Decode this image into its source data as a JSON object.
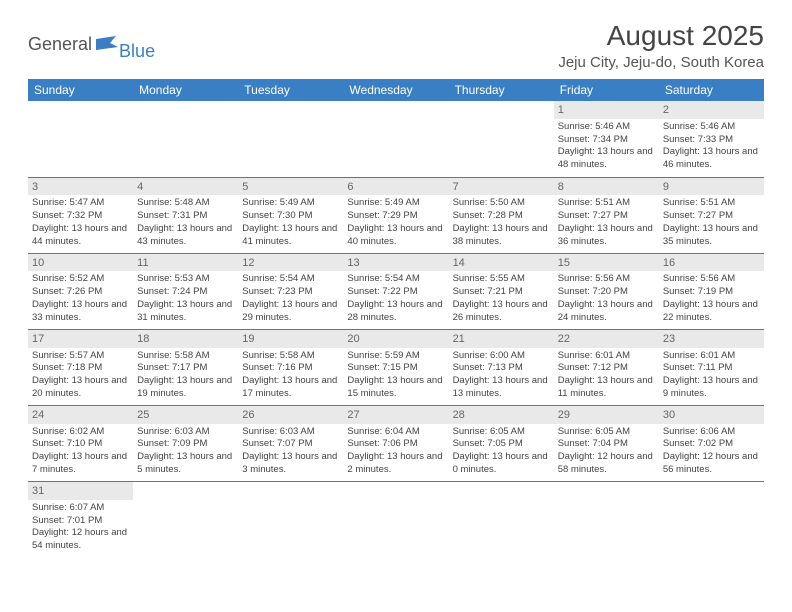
{
  "logo": {
    "general": "General",
    "blue": "Blue"
  },
  "title": "August 2025",
  "location": "Jeju City, Jeju-do, South Korea",
  "colors": {
    "header_bg": "#3a7fc4",
    "header_text": "#ffffff",
    "border": "#3a7fc4",
    "daynum_bg": "#e9e9e9",
    "text": "#444444",
    "page_bg": "#ffffff"
  },
  "weekdays": [
    "Sunday",
    "Monday",
    "Tuesday",
    "Wednesday",
    "Thursday",
    "Friday",
    "Saturday"
  ],
  "first_weekday_index": 5,
  "days": [
    {
      "n": 1,
      "sunrise": "5:46 AM",
      "sunset": "7:34 PM",
      "daylight": "13 hours and 48 minutes."
    },
    {
      "n": 2,
      "sunrise": "5:46 AM",
      "sunset": "7:33 PM",
      "daylight": "13 hours and 46 minutes."
    },
    {
      "n": 3,
      "sunrise": "5:47 AM",
      "sunset": "7:32 PM",
      "daylight": "13 hours and 44 minutes."
    },
    {
      "n": 4,
      "sunrise": "5:48 AM",
      "sunset": "7:31 PM",
      "daylight": "13 hours and 43 minutes."
    },
    {
      "n": 5,
      "sunrise": "5:49 AM",
      "sunset": "7:30 PM",
      "daylight": "13 hours and 41 minutes."
    },
    {
      "n": 6,
      "sunrise": "5:49 AM",
      "sunset": "7:29 PM",
      "daylight": "13 hours and 40 minutes."
    },
    {
      "n": 7,
      "sunrise": "5:50 AM",
      "sunset": "7:28 PM",
      "daylight": "13 hours and 38 minutes."
    },
    {
      "n": 8,
      "sunrise": "5:51 AM",
      "sunset": "7:27 PM",
      "daylight": "13 hours and 36 minutes."
    },
    {
      "n": 9,
      "sunrise": "5:51 AM",
      "sunset": "7:27 PM",
      "daylight": "13 hours and 35 minutes."
    },
    {
      "n": 10,
      "sunrise": "5:52 AM",
      "sunset": "7:26 PM",
      "daylight": "13 hours and 33 minutes."
    },
    {
      "n": 11,
      "sunrise": "5:53 AM",
      "sunset": "7:24 PM",
      "daylight": "13 hours and 31 minutes."
    },
    {
      "n": 12,
      "sunrise": "5:54 AM",
      "sunset": "7:23 PM",
      "daylight": "13 hours and 29 minutes."
    },
    {
      "n": 13,
      "sunrise": "5:54 AM",
      "sunset": "7:22 PM",
      "daylight": "13 hours and 28 minutes."
    },
    {
      "n": 14,
      "sunrise": "5:55 AM",
      "sunset": "7:21 PM",
      "daylight": "13 hours and 26 minutes."
    },
    {
      "n": 15,
      "sunrise": "5:56 AM",
      "sunset": "7:20 PM",
      "daylight": "13 hours and 24 minutes."
    },
    {
      "n": 16,
      "sunrise": "5:56 AM",
      "sunset": "7:19 PM",
      "daylight": "13 hours and 22 minutes."
    },
    {
      "n": 17,
      "sunrise": "5:57 AM",
      "sunset": "7:18 PM",
      "daylight": "13 hours and 20 minutes."
    },
    {
      "n": 18,
      "sunrise": "5:58 AM",
      "sunset": "7:17 PM",
      "daylight": "13 hours and 19 minutes."
    },
    {
      "n": 19,
      "sunrise": "5:58 AM",
      "sunset": "7:16 PM",
      "daylight": "13 hours and 17 minutes."
    },
    {
      "n": 20,
      "sunrise": "5:59 AM",
      "sunset": "7:15 PM",
      "daylight": "13 hours and 15 minutes."
    },
    {
      "n": 21,
      "sunrise": "6:00 AM",
      "sunset": "7:13 PM",
      "daylight": "13 hours and 13 minutes."
    },
    {
      "n": 22,
      "sunrise": "6:01 AM",
      "sunset": "7:12 PM",
      "daylight": "13 hours and 11 minutes."
    },
    {
      "n": 23,
      "sunrise": "6:01 AM",
      "sunset": "7:11 PM",
      "daylight": "13 hours and 9 minutes."
    },
    {
      "n": 24,
      "sunrise": "6:02 AM",
      "sunset": "7:10 PM",
      "daylight": "13 hours and 7 minutes."
    },
    {
      "n": 25,
      "sunrise": "6:03 AM",
      "sunset": "7:09 PM",
      "daylight": "13 hours and 5 minutes."
    },
    {
      "n": 26,
      "sunrise": "6:03 AM",
      "sunset": "7:07 PM",
      "daylight": "13 hours and 3 minutes."
    },
    {
      "n": 27,
      "sunrise": "6:04 AM",
      "sunset": "7:06 PM",
      "daylight": "13 hours and 2 minutes."
    },
    {
      "n": 28,
      "sunrise": "6:05 AM",
      "sunset": "7:05 PM",
      "daylight": "13 hours and 0 minutes."
    },
    {
      "n": 29,
      "sunrise": "6:05 AM",
      "sunset": "7:04 PM",
      "daylight": "12 hours and 58 minutes."
    },
    {
      "n": 30,
      "sunrise": "6:06 AM",
      "sunset": "7:02 PM",
      "daylight": "12 hours and 56 minutes."
    },
    {
      "n": 31,
      "sunrise": "6:07 AM",
      "sunset": "7:01 PM",
      "daylight": "12 hours and 54 minutes."
    }
  ],
  "labels": {
    "sunrise": "Sunrise: ",
    "sunset": "Sunset: ",
    "daylight": "Daylight: "
  }
}
